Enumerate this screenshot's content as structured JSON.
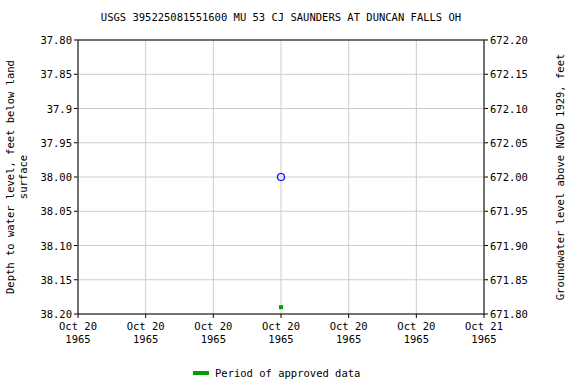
{
  "chart_data": {
    "type": "scatter",
    "title": "USGS 395225081551600 MU 53 CJ SAUNDERS AT DUNCAN FALLS OH",
    "y_label": "Depth to water level, feet below land\nsurface",
    "y2_label": "Groundwater level above NGVD 1929, feet",
    "categories": [
      "Oct 20\n1965",
      "Oct 20\n1965",
      "Oct 20\n1965",
      "Oct 20\n1965",
      "Oct 20\n1965",
      "Oct 20\n1965",
      "Oct 21\n1965"
    ],
    "ylim": [
      38.2,
      37.8
    ],
    "yticks": [
      {
        "value": 37.8,
        "label": "37.80"
      },
      37.85,
      37.9,
      37.95,
      {
        "value": 38.0,
        "label": "38.00"
      },
      38.05,
      {
        "value": 38.1,
        "label": "38.10"
      },
      38.15,
      {
        "value": 38.2,
        "label": "38.20"
      }
    ],
    "y2lim": [
      671.8,
      672.2
    ],
    "y2ticks": [
      {
        "value": 672.2,
        "label": "672.20"
      },
      672.15,
      {
        "value": 672.1,
        "label": "672.10"
      },
      672.05,
      {
        "value": 672.0,
        "label": "672.00"
      },
      671.95,
      {
        "value": 671.9,
        "label": "671.90"
      },
      671.85,
      {
        "value": 671.8,
        "label": "671.80"
      }
    ],
    "grid": true,
    "legend": "bottom",
    "series": [
      {
        "color": "#0000ff",
        "marker": "circle-open",
        "values": [
          null,
          null,
          null,
          38.0,
          null,
          null,
          null
        ]
      },
      {
        "name": "Period of approved data",
        "color": "#00a000",
        "marker": "square",
        "values": [
          null,
          null,
          null,
          38.19,
          null,
          null,
          null
        ]
      }
    ]
  }
}
